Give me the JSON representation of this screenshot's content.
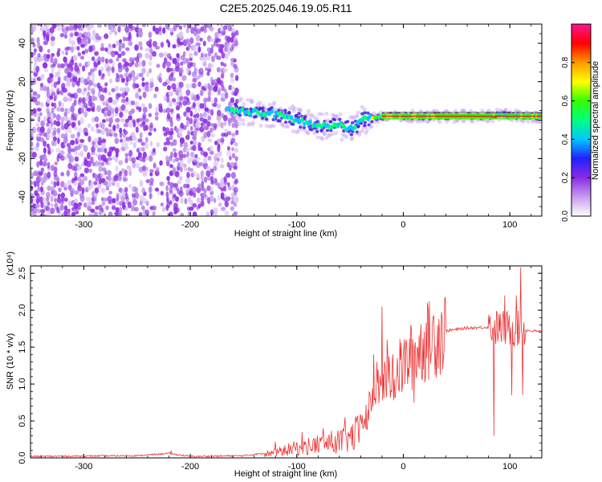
{
  "title": "C2E5.2025.046.19.05.R11",
  "chart_data": [
    {
      "type": "heatmap",
      "title": "",
      "xlabel": "Height of straight line (km)",
      "ylabel": "Frequency (Hz)",
      "xlim": [
        -350,
        130
      ],
      "ylim": [
        -50,
        50
      ],
      "xticks": [
        -300,
        -200,
        -100,
        0,
        100
      ],
      "yticks": [
        -40,
        -20,
        0,
        20,
        40
      ],
      "colorbar": {
        "label": "Normalized spectral amplitude",
        "range": [
          0,
          1
        ],
        "ticks": [
          0.0,
          0.2,
          0.4,
          0.6,
          0.8
        ],
        "tick_labels": [
          "0.0",
          "0.2",
          "0.4",
          "0.6",
          "0.8"
        ],
        "colors": [
          "#ffffff",
          "#c89bf0",
          "#8a2be2",
          "#2020ff",
          "#00c8ff",
          "#00ff80",
          "#33ff00",
          "#ffff00",
          "#ff9900",
          "#ff0000",
          "#ff1493"
        ]
      },
      "ridge": {
        "x": [
          -160,
          -140,
          -120,
          -100,
          -80,
          -60,
          -50,
          -40,
          -30,
          -20,
          -10,
          0,
          20,
          40,
          60,
          80,
          90,
          100,
          110,
          130
        ],
        "y": [
          5,
          4,
          3,
          0,
          -3,
          -3,
          -5,
          0,
          1,
          2,
          2,
          2,
          2,
          2,
          2,
          2,
          3,
          2,
          2,
          2
        ]
      }
    },
    {
      "type": "line",
      "title": "",
      "xlabel": "Height of straight line (km)",
      "ylabel": "SNR (10 * v/v)",
      "scale_label": "(x10⁴)",
      "xlim": [
        -350,
        130
      ],
      "ylim": [
        0,
        2.6
      ],
      "xticks": [
        -300,
        -200,
        -100,
        0,
        100
      ],
      "yticks": [
        0.0,
        0.5,
        1.0,
        1.5,
        2.0,
        2.5
      ],
      "ytick_labels": [
        "0.0",
        "0.5",
        "1.0",
        "1.5",
        "2.0",
        "2.5"
      ],
      "color": "#ee3333",
      "envelope": {
        "x": [
          -350,
          -250,
          -220,
          -200,
          -150,
          -120,
          -100,
          -80,
          -60,
          -50,
          -40,
          -30,
          -20,
          -10,
          0,
          10,
          20,
          30,
          40,
          60,
          80,
          90,
          100,
          110,
          120,
          130
        ],
        "y": [
          0.02,
          0.03,
          0.06,
          0.02,
          0.03,
          0.08,
          0.15,
          0.2,
          0.25,
          0.3,
          0.4,
          0.7,
          1.0,
          1.1,
          1.25,
          1.4,
          1.55,
          1.65,
          1.72,
          1.76,
          1.77,
          1.76,
          1.75,
          1.74,
          1.72,
          1.71
        ]
      },
      "spikes": [
        {
          "x": -218,
          "y": 0.1
        },
        {
          "x": -120,
          "y": 0.22
        },
        {
          "x": -95,
          "y": 0.35
        },
        {
          "x": -75,
          "y": 0.4
        },
        {
          "x": -55,
          "y": 0.55
        },
        {
          "x": -45,
          "y": 0.5
        },
        {
          "x": -32,
          "y": 0.9
        },
        {
          "x": -28,
          "y": 1.4
        },
        {
          "x": -25,
          "y": 1.3
        },
        {
          "x": -20,
          "y": 2.05
        },
        {
          "x": -15,
          "y": 1.6
        },
        {
          "x": -10,
          "y": 1.4
        },
        {
          "x": 10,
          "y": 0.75
        },
        {
          "x": 85,
          "y": 0.3
        },
        {
          "x": 95,
          "y": 2.2
        },
        {
          "x": 102,
          "y": 0.85
        },
        {
          "x": 106,
          "y": 2.2
        },
        {
          "x": 110,
          "y": 2.58
        },
        {
          "x": 112,
          "y": 0.85
        }
      ]
    }
  ]
}
